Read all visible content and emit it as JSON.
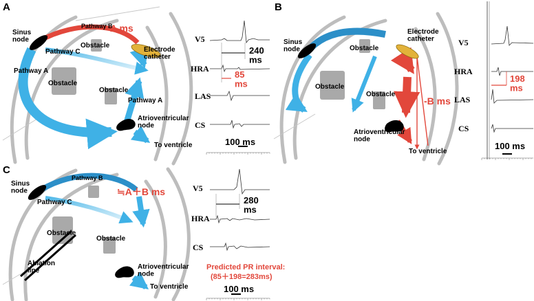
{
  "panels": {
    "A": {
      "letter": "A",
      "sinus_node": "Sinus\nnode",
      "pathway_a": "Pathway A",
      "pathway_a_lower": "Pathway A",
      "pathway_b": "Pathway B",
      "pathway_c": "Pathway C",
      "obstacle_large": "Obstacle",
      "obstacle_top": "Obstacle",
      "obstacle_small": "Obstacle",
      "electrode_catheter": "Electrode\ncatheter",
      "av_node": "Atrioventricular\nnode",
      "to_ventricle": "To ventricle",
      "delay_label": "A ms",
      "leads": [
        "V5",
        "HRA",
        "LAS",
        "CS"
      ],
      "interval_v5": "240\nms",
      "interval_hra": "85\nms",
      "scale": "100 ms"
    },
    "B": {
      "letter": "B",
      "sinus_node": "Sinus\nnode",
      "obstacle_top": "Obstacle",
      "obstacle_large": "Obstacle",
      "obstacle_small": "Obstacle",
      "electrode_catheter": "Electrode\ncatheter",
      "av_node": "Atrioventricular\nnode",
      "to_ventricle": "To ventricle",
      "delay_label": "-B ms",
      "leads": [
        "V5",
        "HRA",
        "LAS",
        "CS"
      ],
      "interval_hra": "198\nms",
      "scale": "100 ms"
    },
    "C": {
      "letter": "C",
      "sinus_node": "Sinus\nnode",
      "pathway_b": "Pathway B",
      "pathway_c": "Pathway C",
      "obstacle_large": "Obstacle",
      "obstacle_small": "Obstacle",
      "ablation_line": "Ablation\nline",
      "av_node": "Atrioventricular\nnode",
      "to_ventricle": "To ventricle",
      "delay_label": "≒A＋B ms",
      "leads": [
        "V5",
        "HRA",
        "CS"
      ],
      "interval_v5": "280\nms",
      "predicted_title": "Predicted PR interval:",
      "predicted_value": "(85＋198=283ms)",
      "scale": "100 ms"
    }
  },
  "colors": {
    "pathway_blue": "#3fb1e6",
    "pathway_blue_dark": "#2c8fc8",
    "pathway_red": "#e2473b",
    "catheter_gold": "#e2b23a",
    "obstacle_gray": "#a9a9a9",
    "wall_gray": "#bdbdbd"
  }
}
